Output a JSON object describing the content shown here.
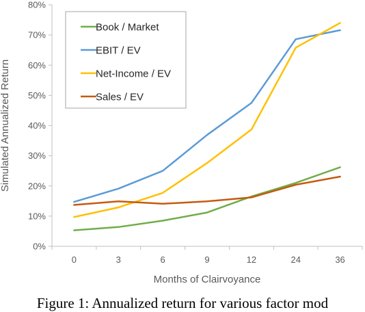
{
  "chart_data": {
    "type": "line",
    "categories": [
      "0",
      "3",
      "6",
      "9",
      "12",
      "24",
      "36"
    ],
    "xlabel": "Months of Clairvoyance",
    "ylabel": "Simulated Annualized Return",
    "ylim": [
      0,
      80
    ],
    "yticks": [
      "0%",
      "10%",
      "20%",
      "30%",
      "40%",
      "50%",
      "60%",
      "70%",
      "80%"
    ],
    "legend_position": "top-left",
    "grid": false,
    "series": [
      {
        "name": "Book / Market",
        "color": "#70AD47",
        "values": [
          5.3,
          6.4,
          8.5,
          11.2,
          16.5,
          21.0,
          26.2
        ]
      },
      {
        "name": "EBIT / EV",
        "color": "#5B9BD5",
        "values": [
          14.7,
          19.1,
          25.0,
          36.9,
          47.5,
          68.6,
          71.6
        ]
      },
      {
        "name": "Net-Income / EV",
        "color": "#FFC000",
        "values": [
          9.7,
          12.9,
          17.7,
          27.6,
          38.7,
          65.8,
          74.0
        ]
      },
      {
        "name": "Sales / EV",
        "color": "#C55A11",
        "values": [
          13.7,
          14.9,
          14.1,
          14.9,
          16.2,
          20.4,
          23.1
        ]
      }
    ]
  },
  "caption": "Figure 1: Annualized return for various factor mod"
}
